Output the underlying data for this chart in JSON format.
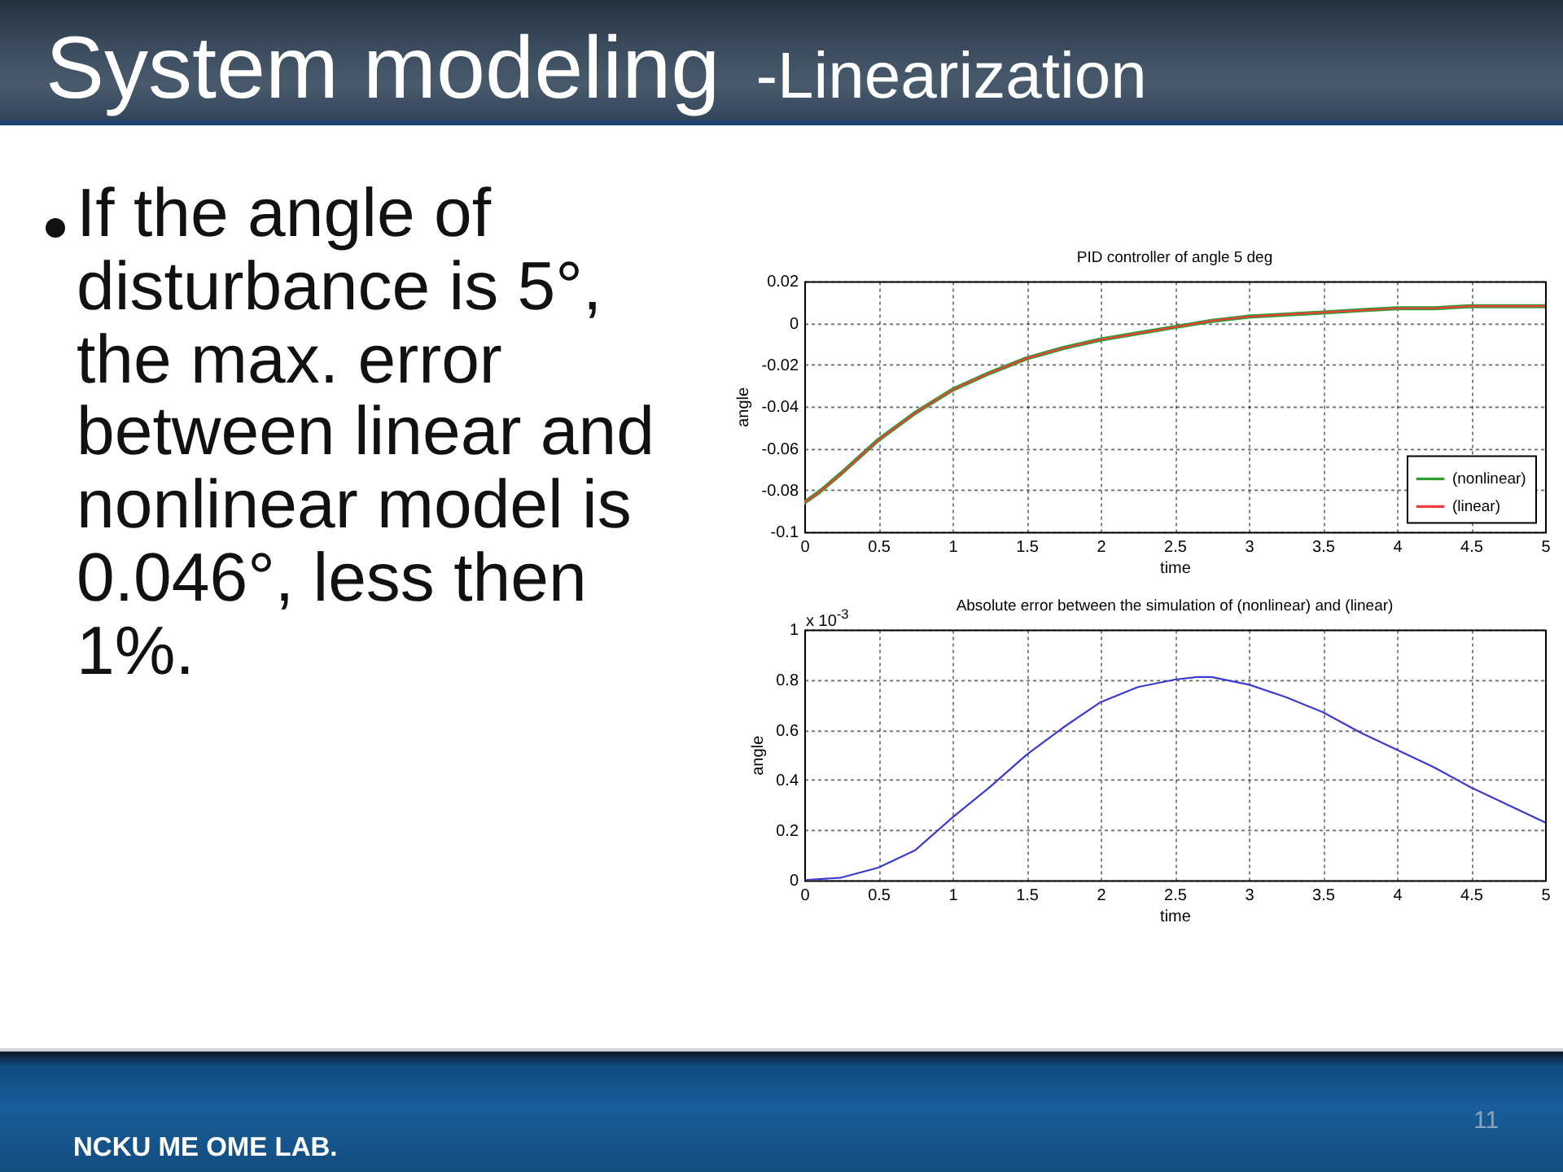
{
  "chart_data": [
    {
      "type": "other",
      "title": "System modeling",
      "subtitle": "-Linearization",
      "annotations": [
        "If the angle of disturbance is 5°, the max. error between linear and nonlinear model is 0.046°, less then 1%.",
        "11",
        "NCKU ME OME LAB."
      ]
    },
    {
      "type": "line",
      "title": "PID controller of angle 5 deg",
      "xlabel": "time",
      "ylabel": "angle",
      "x": [
        0,
        0.1,
        0.25,
        0.5,
        0.75,
        1,
        1.25,
        1.5,
        1.75,
        2,
        2.25,
        2.5,
        2.75,
        3,
        3.25,
        3.5,
        3.75,
        4,
        4.25,
        4.5,
        4.75,
        5
      ],
      "series": [
        {
          "name": "(nonlinear)",
          "color": "#2e9e2e",
          "values": [
            -0.086,
            -0.081,
            -0.072,
            -0.056,
            -0.043,
            -0.032,
            -0.024,
            -0.017,
            -0.012,
            -0.008,
            -0.005,
            -0.002,
            0.001,
            0.003,
            0.004,
            0.005,
            0.006,
            0.007,
            0.007,
            0.008,
            0.008,
            0.008
          ]
        },
        {
          "name": "(linear)",
          "color": "#f03c3c",
          "values": [
            -0.086,
            -0.081,
            -0.072,
            -0.056,
            -0.043,
            -0.032,
            -0.024,
            -0.017,
            -0.012,
            -0.008,
            -0.005,
            -0.002,
            0.001,
            0.003,
            0.004,
            0.005,
            0.006,
            0.007,
            0.007,
            0.008,
            0.008,
            0.008
          ]
        }
      ],
      "xlim": [
        0,
        5
      ],
      "ylim": [
        -0.1,
        0.02
      ],
      "xticks": [
        0,
        0.5,
        1,
        1.5,
        2,
        2.5,
        3,
        3.5,
        4,
        4.5,
        5
      ],
      "yticks": [
        -0.1,
        -0.08,
        -0.06,
        -0.04,
        -0.02,
        0,
        0.02
      ],
      "grid": true,
      "legend": "bottom right"
    },
    {
      "type": "line",
      "title": "Absolute error between the simulation of (nonlinear) and (linear)",
      "xlabel": "time",
      "ylabel": "angle",
      "annotations": [
        "x 10$^{-3}$"
      ],
      "x": [
        0,
        0.25,
        0.5,
        0.75,
        1,
        1.25,
        1.5,
        1.75,
        2,
        2.25,
        2.5,
        2.65,
        2.75,
        3,
        3.25,
        3.5,
        3.75,
        4,
        4.25,
        4.5,
        4.75,
        5
      ],
      "series": [
        {
          "color": "#3b3bd0",
          "values": [
            0,
            0.01,
            0.05,
            0.12,
            0.25,
            0.37,
            0.5,
            0.61,
            0.71,
            0.77,
            0.8,
            0.81,
            0.81,
            0.78,
            0.73,
            0.67,
            0.59,
            0.52,
            0.45,
            0.37,
            0.3,
            0.23
          ]
        }
      ],
      "xlim": [
        0,
        5
      ],
      "ylim": [
        0,
        1
      ],
      "xticks": [
        0,
        0.5,
        1,
        1.5,
        2,
        2.5,
        3,
        3.5,
        4,
        4.5,
        5
      ],
      "yticks": [
        0,
        0.2,
        0.4,
        0.6,
        0.8,
        1
      ],
      "grid": true
    }
  ]
}
